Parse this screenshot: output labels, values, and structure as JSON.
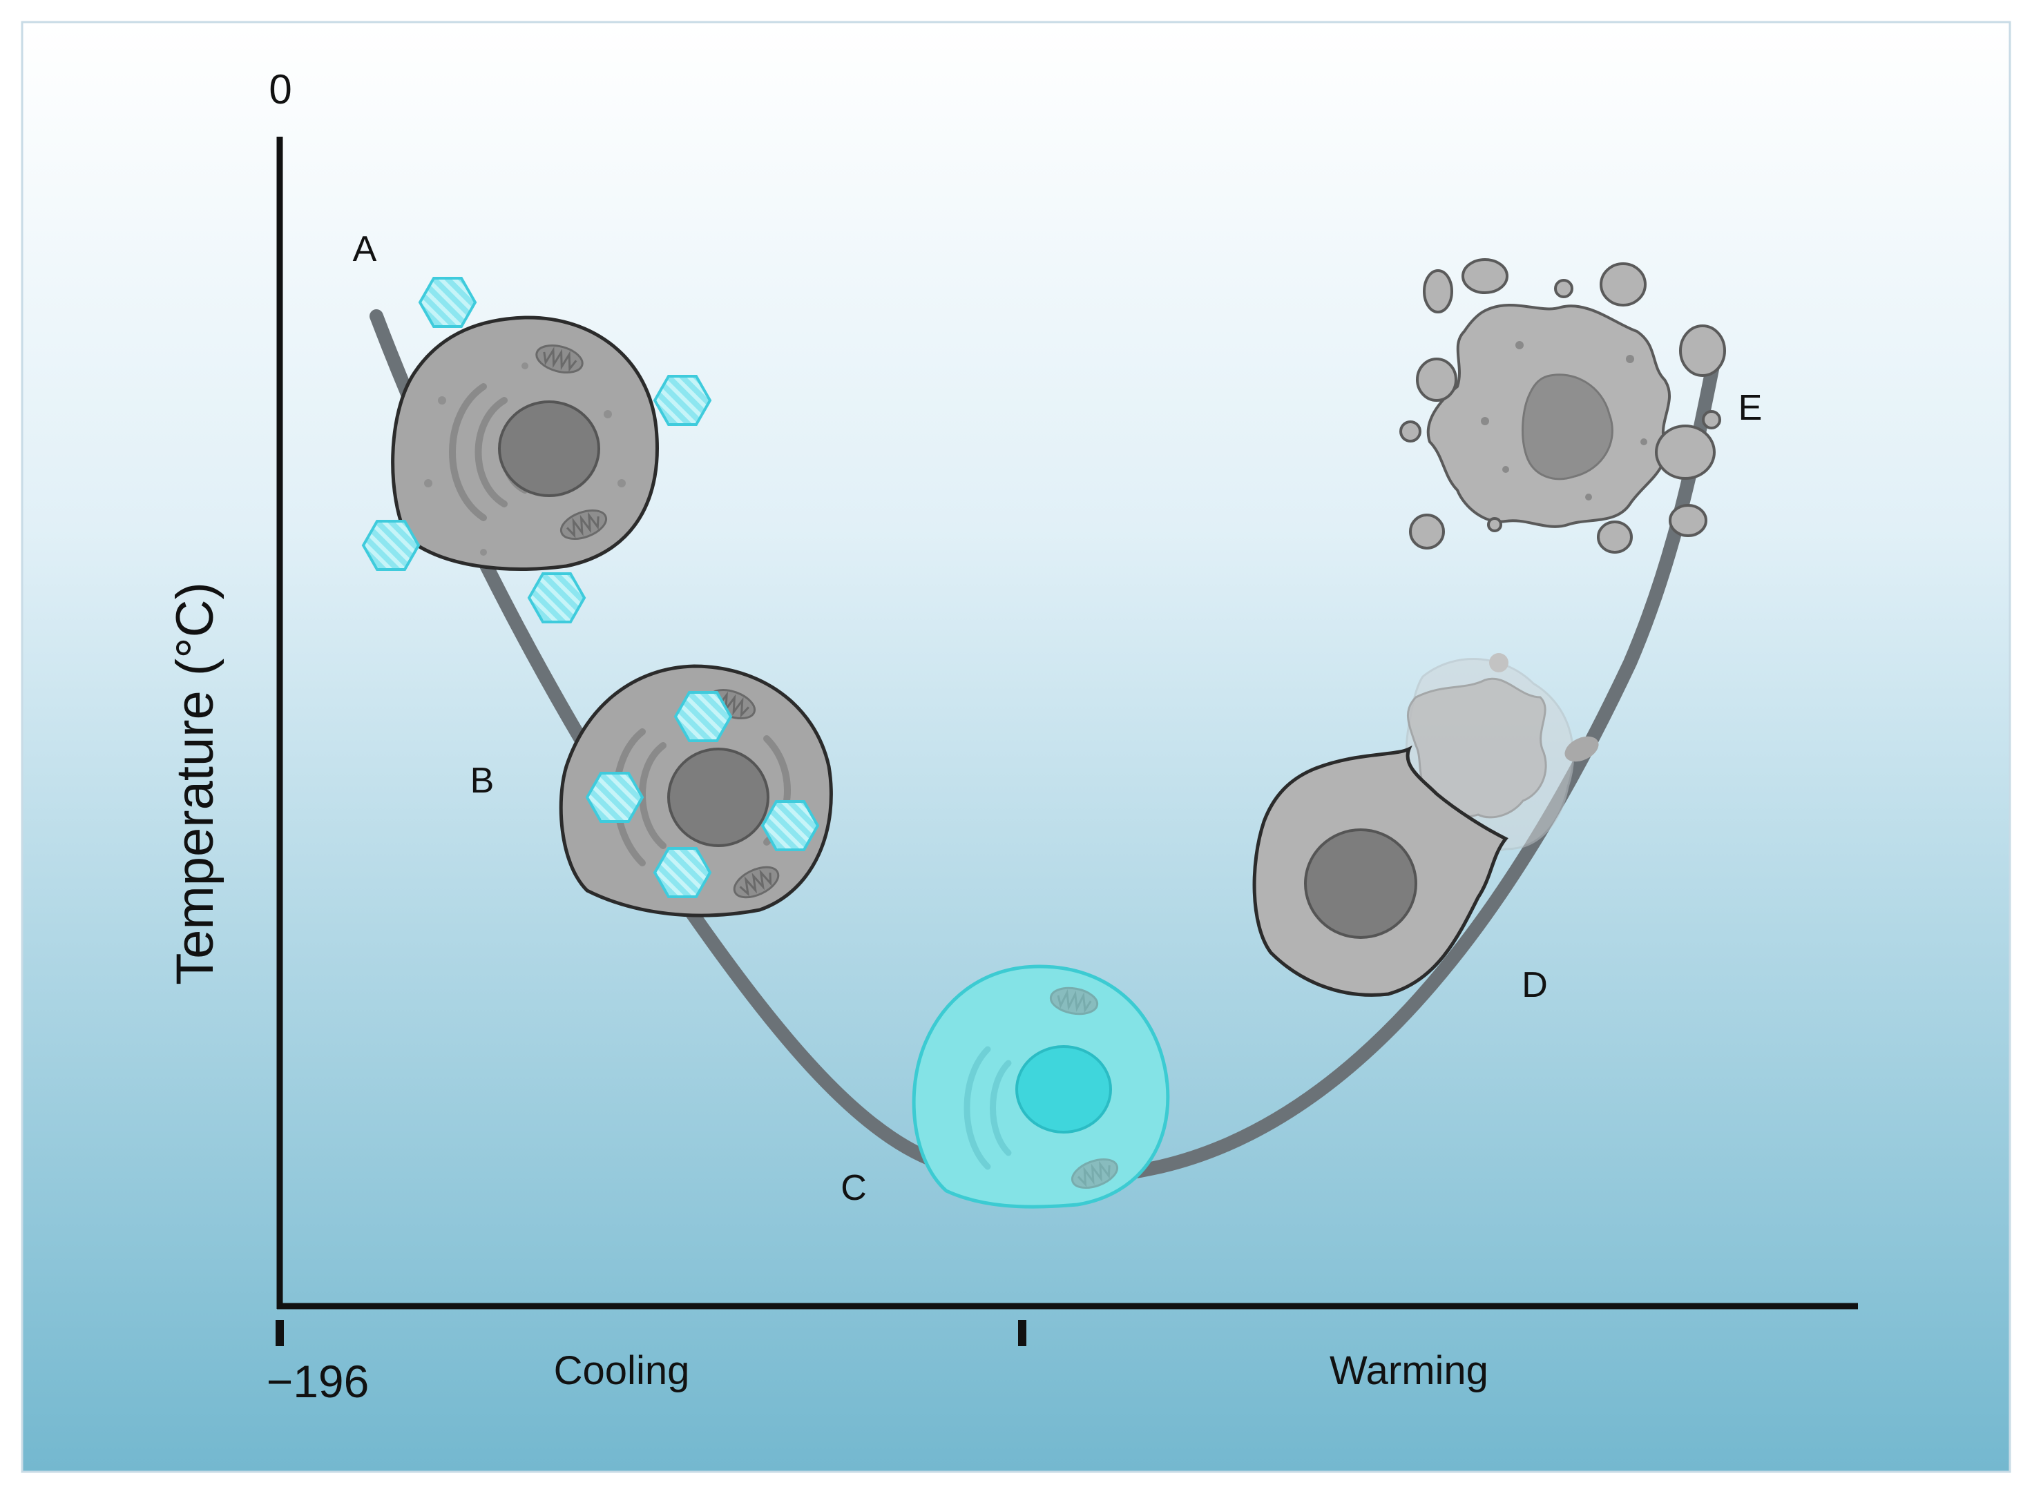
{
  "axes": {
    "y_label": "Temperature (°C)",
    "y_top_tick": "0",
    "x_origin_tick": "−196",
    "phase_left": "Cooling",
    "phase_right": "Warming"
  },
  "stages": [
    {
      "id": "A",
      "label": "A"
    },
    {
      "id": "B",
      "label": "B"
    },
    {
      "id": "C",
      "label": "C"
    },
    {
      "id": "D",
      "label": "D"
    },
    {
      "id": "E",
      "label": "E"
    }
  ],
  "colors": {
    "background_top": "#ffffff",
    "background_bottom": "#74b8cf",
    "curve": "#6b7277",
    "cell_gray": "#a6a6a6",
    "nucleus_gray": "#7d7d7d",
    "ice_crystal": "#7fe3ee",
    "vitrified_cell": "#84e3e6",
    "vitrified_nucleus": "#3fd6dc"
  }
}
